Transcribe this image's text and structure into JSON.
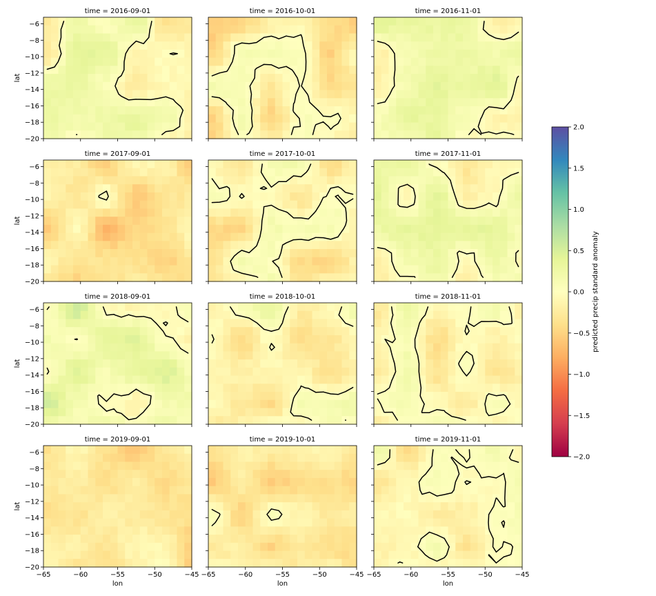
{
  "chart_data": {
    "type": "heatmap",
    "facet_titles": [
      [
        "time = 2016-09-01",
        "time = 2016-10-01",
        "time = 2016-11-01"
      ],
      [
        "time = 2017-09-01",
        "time = 2017-10-01",
        "time = 2017-11-01"
      ],
      [
        "time = 2018-09-01",
        "time = 2018-10-01",
        "time = 2018-11-01"
      ],
      [
        "time = 2019-09-01",
        "time = 2019-10-01",
        "time = 2019-11-01"
      ]
    ],
    "xlabel": "lon",
    "ylabel": "lat",
    "xlim": [
      -65,
      -45
    ],
    "ylim": [
      -20,
      -5.2
    ],
    "x_ticks": [
      -65,
      -60,
      -55,
      -50,
      -45
    ],
    "x_tick_labels": [
      "−65",
      "−60",
      "−55",
      "−50",
      "−45"
    ],
    "y_ticks": [
      -6,
      -8,
      -10,
      -12,
      -14,
      -16,
      -18,
      -20
    ],
    "y_tick_labels": [
      "−6",
      "−8",
      "−10",
      "−12",
      "−14",
      "−16",
      "−18",
      "−20"
    ],
    "colorbar": {
      "label": "predicted precip standard anomaly",
      "range": [
        -2,
        2
      ],
      "ticks": [
        2.0,
        1.5,
        1.0,
        0.5,
        0.0,
        -0.5,
        -1.0,
        -1.5,
        -2.0
      ],
      "tick_labels": [
        "2.0",
        "1.5",
        "1.0",
        "0.5",
        "0.0",
        "−0.5",
        "−1.0",
        "−1.5",
        "−2.0"
      ],
      "colormap": "Spectral",
      "stops": [
        "#9e0142",
        "#d53e4f",
        "#f46d43",
        "#fdae61",
        "#fee08b",
        "#ffffbf",
        "#e6f598",
        "#abdda4",
        "#66c2a5",
        "#3288bd",
        "#5e4fa2"
      ]
    },
    "contour_levels": [
      0
    ],
    "panel_mean_anomaly": [
      [
        0.0,
        -0.2,
        0.1
      ],
      [
        -0.35,
        -0.15,
        0.05
      ],
      [
        0.2,
        -0.08,
        -0.05
      ],
      [
        -0.28,
        -0.22,
        -0.08
      ]
    ]
  }
}
